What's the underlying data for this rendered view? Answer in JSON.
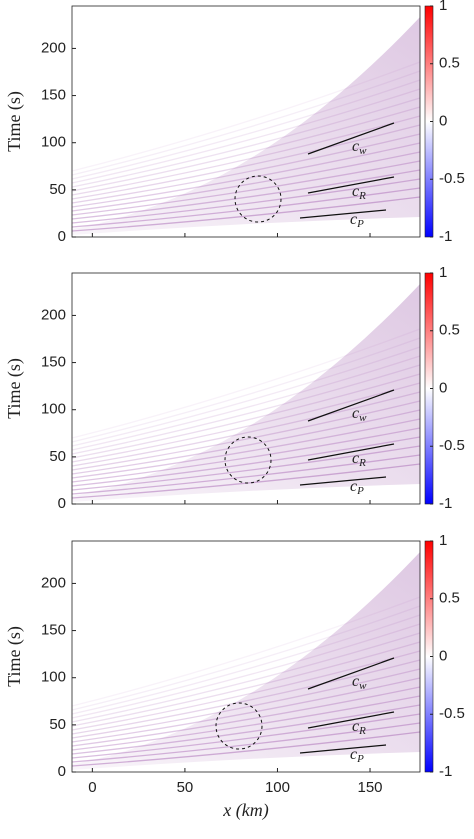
{
  "chart_data": [
    {
      "type": "heatmap",
      "ylabel": "Time (s)",
      "xlim": [
        -11,
        177
      ],
      "ylim": [
        0,
        245
      ],
      "xticks": [
        0,
        50,
        100,
        150
      ],
      "yticks": [
        0,
        50,
        100,
        150,
        200
      ],
      "xticklabels": false,
      "colorbar": {
        "lim": [
          -1,
          1
        ],
        "ticks": [
          -1,
          -0.5,
          0,
          0.5,
          1
        ],
        "colors": [
          "#0000ff",
          "#ffffff",
          "#ff0000"
        ]
      },
      "annotations": [
        {
          "text": "c",
          "sub": "w"
        },
        {
          "text": "c",
          "sub": "R"
        },
        {
          "text": "c",
          "sub": "P"
        }
      ]
    },
    {
      "type": "heatmap",
      "ylabel": "Time (s)",
      "xlim": [
        -11,
        177
      ],
      "ylim": [
        0,
        245
      ],
      "xticks": [
        0,
        50,
        100,
        150
      ],
      "yticks": [
        0,
        50,
        100,
        150,
        200
      ],
      "xticklabels": false,
      "colorbar": {
        "lim": [
          -1,
          1
        ],
        "ticks": [
          -1,
          -0.5,
          0,
          0.5,
          1
        ],
        "colors": [
          "#0000ff",
          "#ffffff",
          "#ff0000"
        ]
      },
      "annotations": [
        {
          "text": "c",
          "sub": "w"
        },
        {
          "text": "c",
          "sub": "R"
        },
        {
          "text": "c",
          "sub": "P"
        }
      ]
    },
    {
      "type": "heatmap",
      "ylabel": "Time (s)",
      "xlabel": "x (km)",
      "xlim": [
        -11,
        177
      ],
      "ylim": [
        0,
        245
      ],
      "xticks": [
        0,
        50,
        100,
        150
      ],
      "yticks": [
        0,
        50,
        100,
        150,
        200
      ],
      "xticklabels": true,
      "colorbar": {
        "lim": [
          -1,
          1
        ],
        "ticks": [
          -1,
          -0.5,
          0,
          0.5,
          1
        ],
        "colors": [
          "#0000ff",
          "#ffffff",
          "#ff0000"
        ]
      },
      "annotations": [
        {
          "text": "c",
          "sub": "w"
        },
        {
          "text": "c",
          "sub": "R"
        },
        {
          "text": "c",
          "sub": "P"
        }
      ]
    }
  ]
}
